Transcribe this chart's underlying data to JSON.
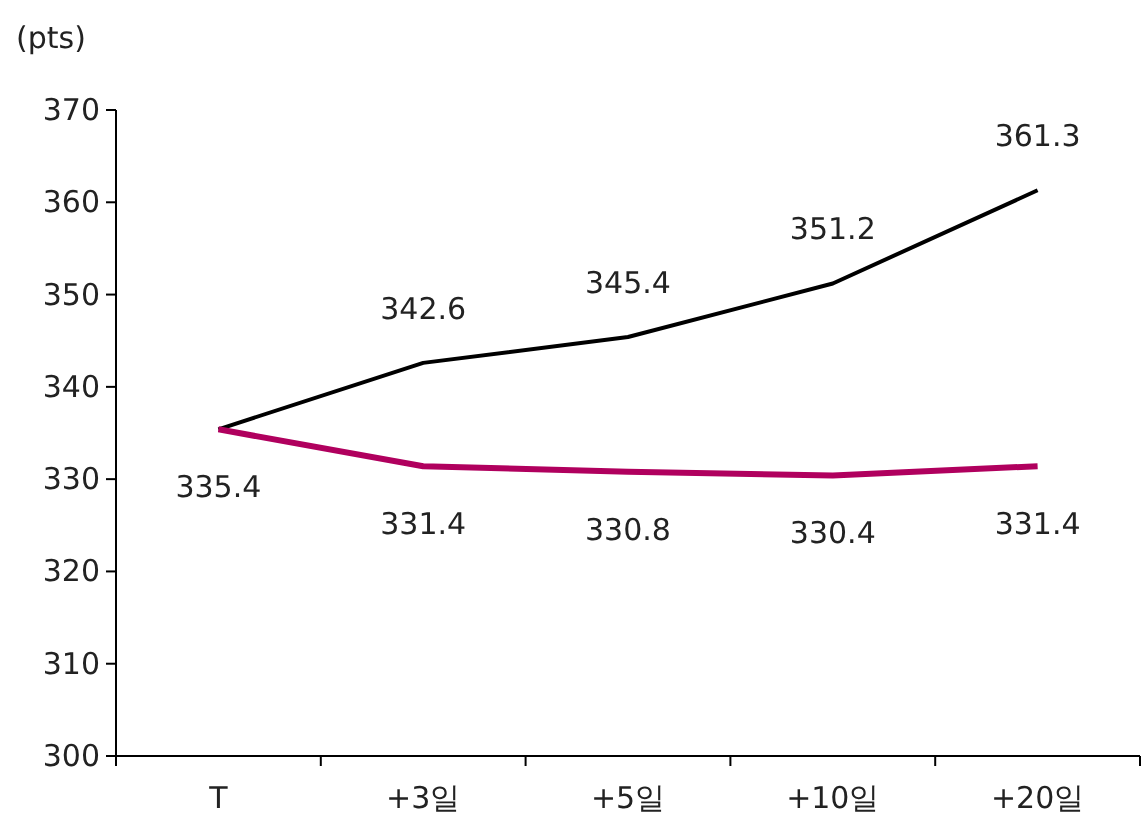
{
  "chart_data": {
    "type": "line",
    "ylabel": "(pts)",
    "categories": [
      "T",
      "+3일",
      "+5일",
      "+10일",
      "+20일"
    ],
    "series": [
      {
        "color": "#000000",
        "values": [
          335.4,
          342.6,
          345.4,
          351.2,
          361.3
        ],
        "value_labels": [
          null,
          "342.6",
          "345.4",
          "351.2",
          "361.3"
        ]
      },
      {
        "color": "#b0005e",
        "values": [
          335.4,
          331.4,
          330.8,
          330.4,
          331.4
        ],
        "value_labels": [
          "335.4",
          "331.4",
          "330.8",
          "330.4",
          "331.4"
        ]
      }
    ],
    "ylim": [
      300,
      370
    ],
    "yticks": [
      300,
      310,
      320,
      330,
      340,
      350,
      360,
      370
    ],
    "grid": false,
    "marker": "none",
    "line_style": "solid"
  }
}
